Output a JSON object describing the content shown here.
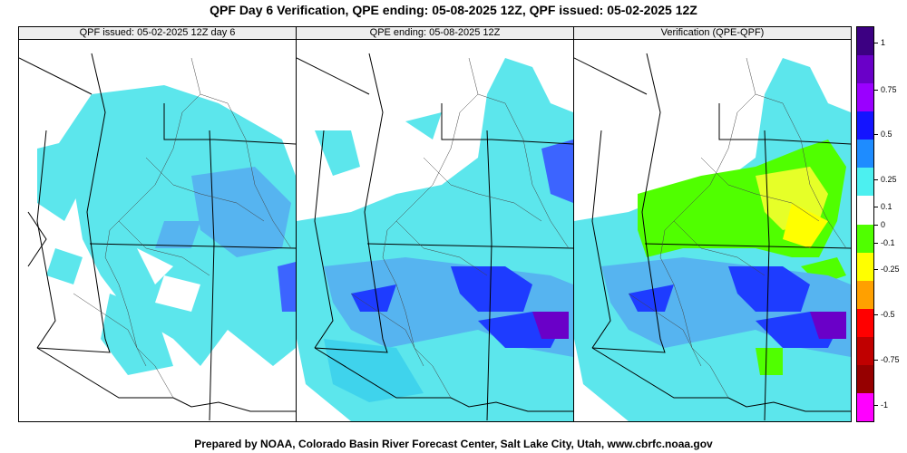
{
  "title": "QPF Day 6 Verification, QPE ending: 05-08-2025 12Z, QPF issued: 05-02-2025 12Z",
  "panels": [
    {
      "header": "QPF issued: 05-02-2025 12Z day 6"
    },
    {
      "header": "QPE ending: 05-08-2025 12Z"
    },
    {
      "header": "Verification (QPE-QPF)"
    }
  ],
  "colorbar": {
    "labels": [
      "1",
      "0.75",
      "0.5",
      "0.25",
      "0.1",
      "0",
      "-0.1",
      "-0.25",
      "-0.5",
      "-0.75",
      "-1"
    ],
    "colors": [
      "#3c0082",
      "#6a00c8",
      "#9a00ff",
      "#1414ff",
      "#1e8cff",
      "#4cf0f0",
      "#ffffff",
      "#50ff00",
      "#ffff00",
      "#ffa000",
      "#ff0000",
      "#c00000",
      "#960000",
      "#ff00ff"
    ]
  },
  "footer": "Prepared by NOAA, Colorado Basin River Forecast Center, Salt Lake City, Utah, www.cbrfc.noaa.gov"
}
